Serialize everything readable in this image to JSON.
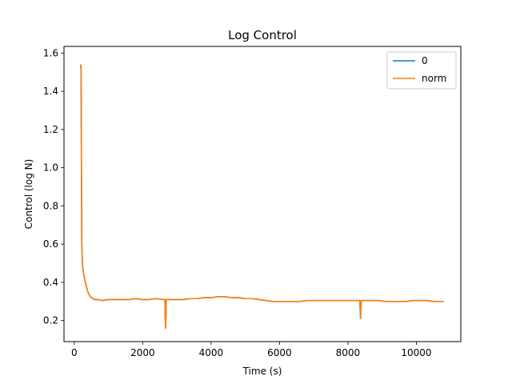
{
  "chart_data": {
    "type": "line",
    "title": "Log Control",
    "xlabel": "Time (s)",
    "ylabel": "Control (log N)",
    "xlim": [
      -300,
      11300
    ],
    "ylim": [
      0.09,
      1.635
    ],
    "x_ticks": [
      0,
      2000,
      4000,
      6000,
      8000,
      10000
    ],
    "y_ticks": [
      0.2,
      0.4,
      0.6,
      0.8,
      1.0,
      1.2,
      1.4,
      1.6
    ],
    "x_tick_labels": [
      "0",
      "2000",
      "4000",
      "6000",
      "8000",
      "10000"
    ],
    "y_tick_labels": [
      "0.2",
      "0.4",
      "0.6",
      "0.8",
      "1.0",
      "1.2",
      "1.4",
      "1.6"
    ],
    "grid": false,
    "legend_position": "top-right",
    "series": [
      {
        "name": "0",
        "color": "#1f77b4",
        "x": [
          190,
          200,
          210,
          220,
          240,
          260,
          300,
          350,
          400,
          450,
          500,
          550,
          600,
          700,
          800,
          1000,
          1200,
          1400,
          1600,
          1800,
          2000,
          2200,
          2400,
          2600,
          2650,
          2660,
          2670,
          2680,
          2690,
          2700,
          2800,
          3000,
          3200,
          3400,
          3600,
          3800,
          4000,
          4200,
          4400,
          4600,
          4800,
          5000,
          5200,
          5400,
          5600,
          5800,
          6000,
          6200,
          6400,
          6600,
          6800,
          7000,
          7200,
          7400,
          7600,
          7800,
          8000,
          8200,
          8350,
          8360,
          8370,
          8380,
          8390,
          8400,
          8500,
          8700,
          8900,
          9100,
          9300,
          9500,
          9700,
          9900,
          10100,
          10300,
          10500,
          10700,
          10800
        ],
        "y": [
          1.54,
          1.5,
          1.0,
          0.6,
          0.5,
          0.46,
          0.42,
          0.38,
          0.35,
          0.33,
          0.32,
          0.315,
          0.31,
          0.31,
          0.305,
          0.31,
          0.31,
          0.31,
          0.31,
          0.315,
          0.31,
          0.31,
          0.315,
          0.31,
          0.31,
          0.2,
          0.16,
          0.22,
          0.31,
          0.31,
          0.31,
          0.31,
          0.31,
          0.315,
          0.315,
          0.32,
          0.32,
          0.325,
          0.325,
          0.32,
          0.32,
          0.315,
          0.315,
          0.31,
          0.305,
          0.3,
          0.3,
          0.3,
          0.3,
          0.3,
          0.305,
          0.305,
          0.305,
          0.305,
          0.305,
          0.305,
          0.305,
          0.305,
          0.305,
          0.25,
          0.21,
          0.26,
          0.305,
          0.305,
          0.305,
          0.305,
          0.305,
          0.3,
          0.3,
          0.3,
          0.3,
          0.305,
          0.305,
          0.305,
          0.3,
          0.3,
          0.3
        ]
      },
      {
        "name": "norm",
        "color": "#ff7f0e",
        "x": [
          190,
          200,
          210,
          220,
          240,
          260,
          300,
          350,
          400,
          450,
          500,
          550,
          600,
          700,
          800,
          1000,
          1200,
          1400,
          1600,
          1800,
          2000,
          2200,
          2400,
          2600,
          2650,
          2660,
          2670,
          2680,
          2690,
          2700,
          2800,
          3000,
          3200,
          3400,
          3600,
          3800,
          4000,
          4200,
          4400,
          4600,
          4800,
          5000,
          5200,
          5400,
          5600,
          5800,
          6000,
          6200,
          6400,
          6600,
          6800,
          7000,
          7200,
          7400,
          7600,
          7800,
          8000,
          8200,
          8350,
          8360,
          8370,
          8380,
          8390,
          8400,
          8500,
          8700,
          8900,
          9100,
          9300,
          9500,
          9700,
          9900,
          10100,
          10300,
          10500,
          10700,
          10800
        ],
        "y": [
          1.54,
          1.5,
          1.0,
          0.6,
          0.5,
          0.46,
          0.42,
          0.38,
          0.35,
          0.33,
          0.32,
          0.315,
          0.31,
          0.31,
          0.305,
          0.31,
          0.31,
          0.31,
          0.31,
          0.315,
          0.31,
          0.31,
          0.315,
          0.31,
          0.31,
          0.2,
          0.16,
          0.22,
          0.31,
          0.31,
          0.31,
          0.31,
          0.31,
          0.315,
          0.315,
          0.32,
          0.32,
          0.325,
          0.325,
          0.32,
          0.32,
          0.315,
          0.315,
          0.31,
          0.305,
          0.3,
          0.3,
          0.3,
          0.3,
          0.3,
          0.305,
          0.305,
          0.305,
          0.305,
          0.305,
          0.305,
          0.305,
          0.305,
          0.305,
          0.25,
          0.21,
          0.26,
          0.305,
          0.305,
          0.305,
          0.305,
          0.305,
          0.3,
          0.3,
          0.3,
          0.3,
          0.305,
          0.305,
          0.305,
          0.3,
          0.3,
          0.3
        ]
      }
    ]
  }
}
